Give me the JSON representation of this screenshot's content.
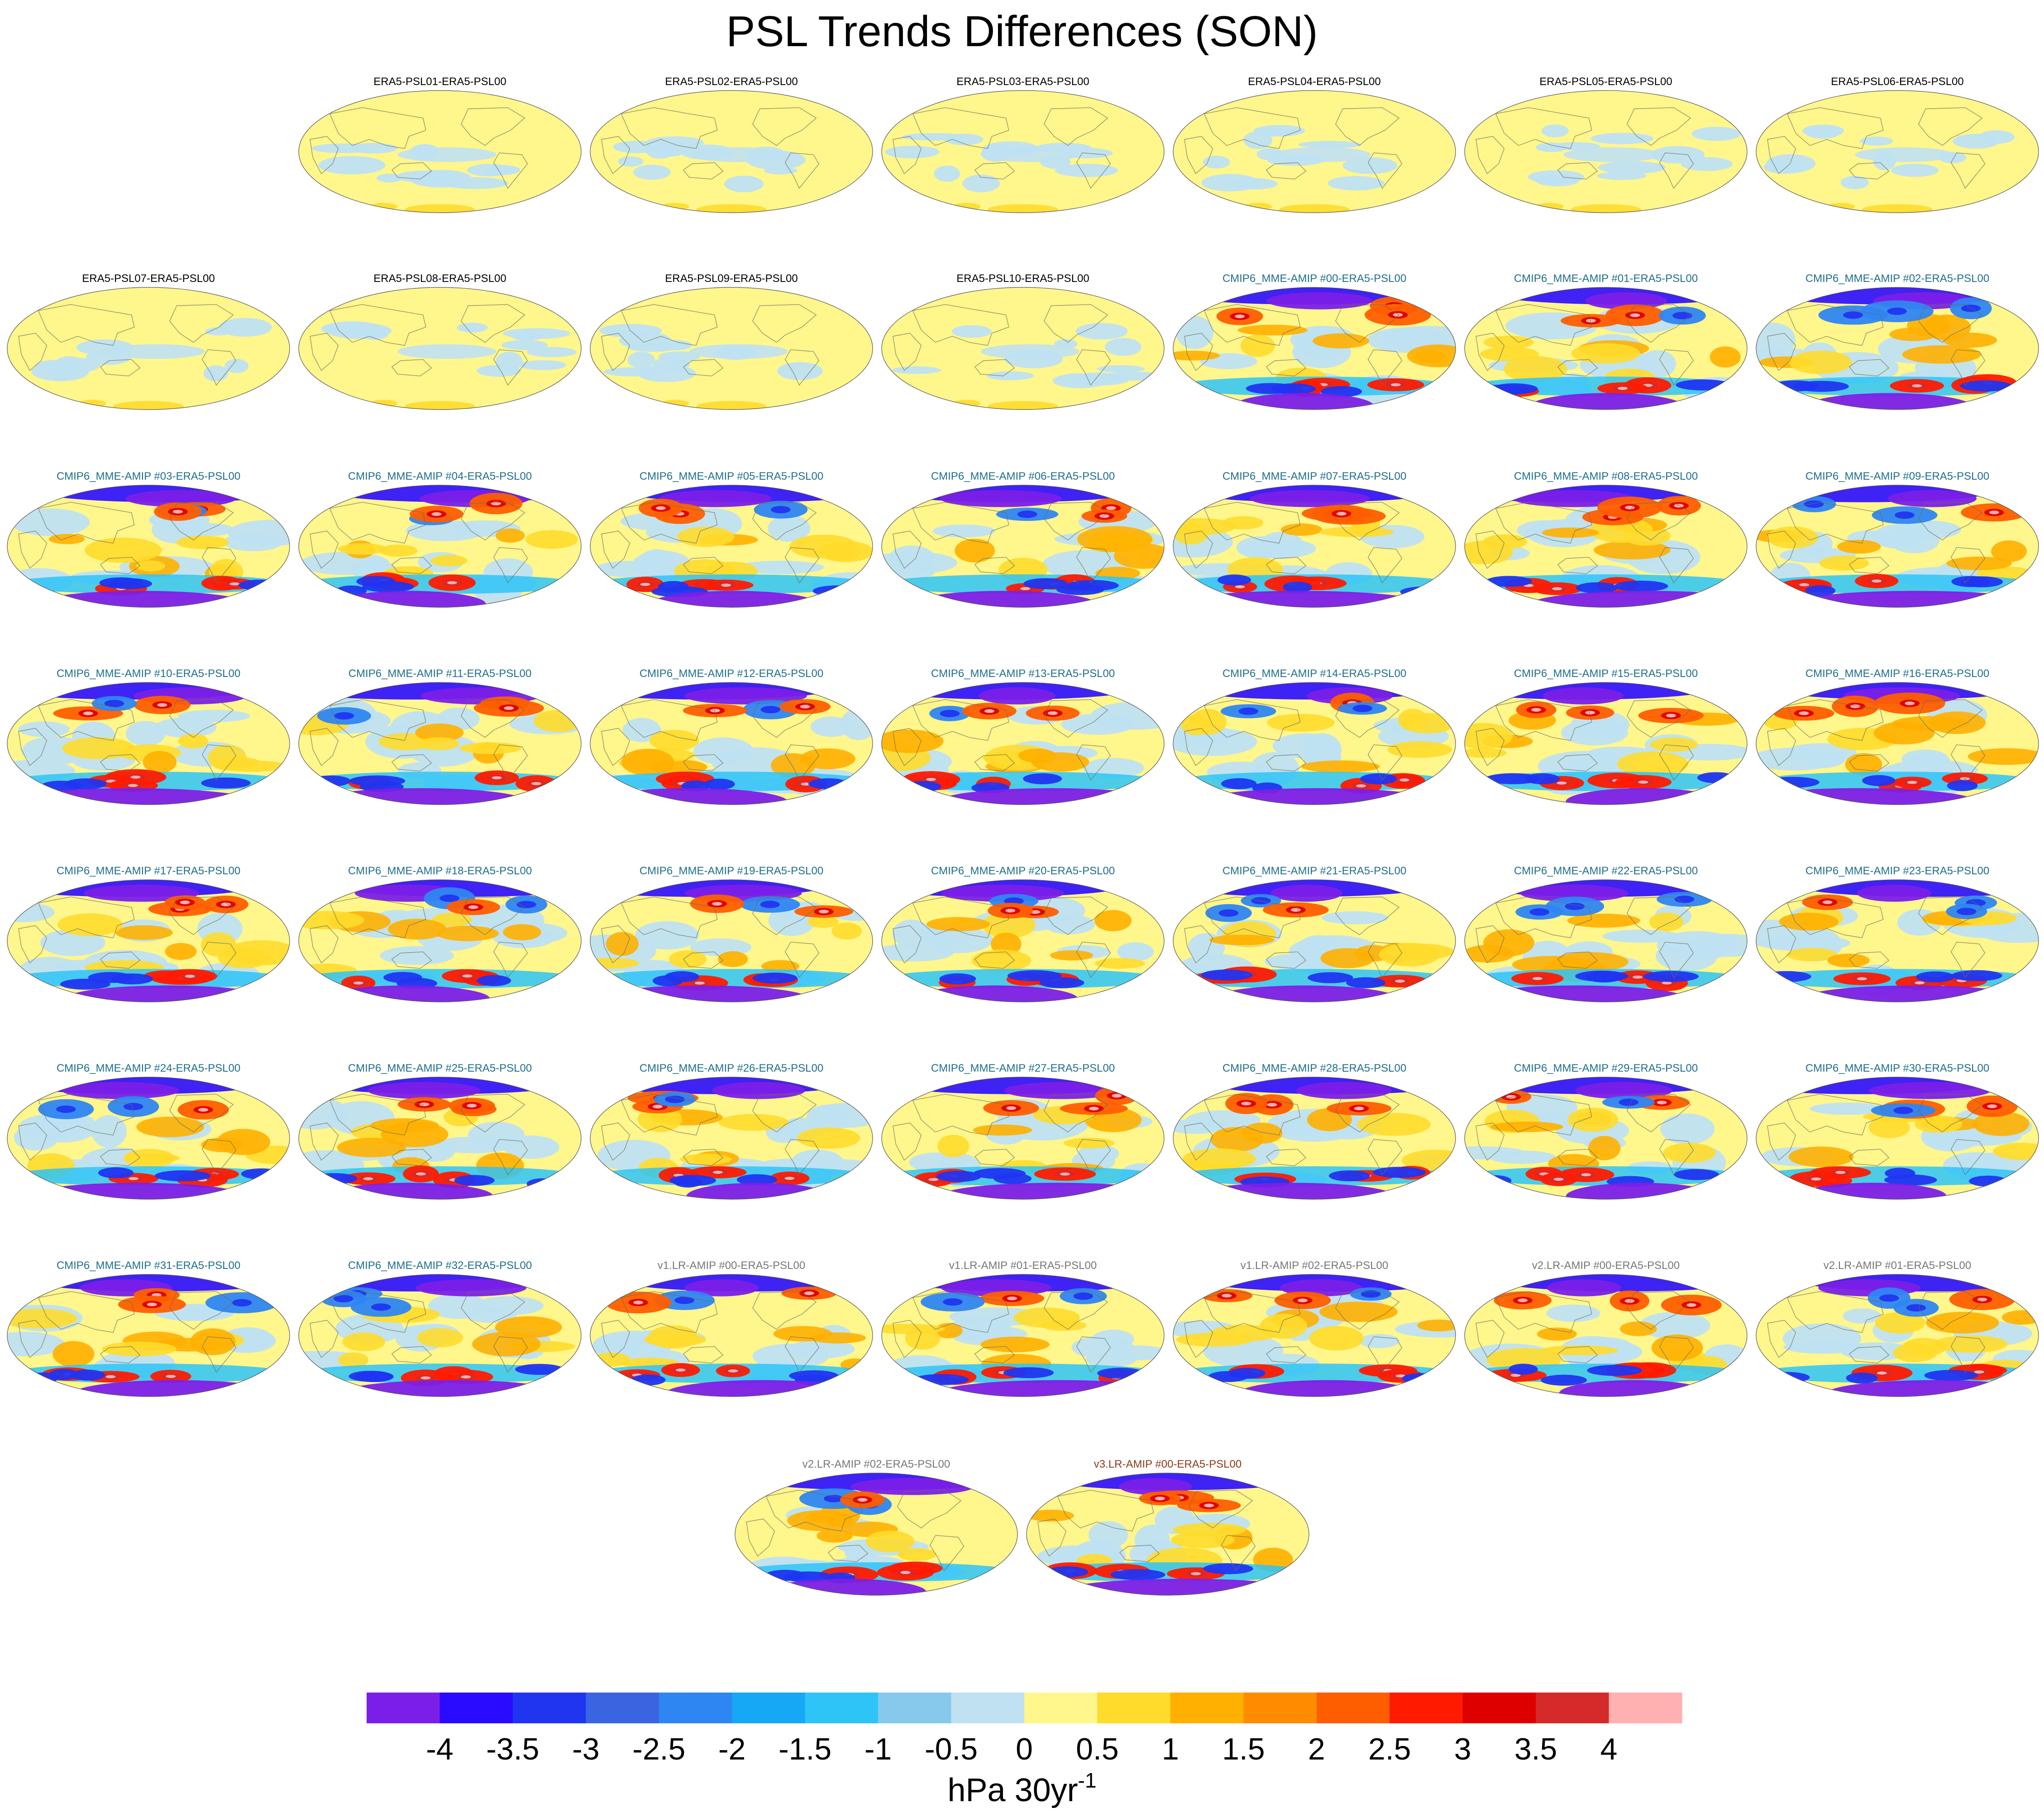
{
  "chart_data": {
    "type": "heatmap",
    "title": "PSL Trends Differences (SON)",
    "projection": "global ellipse (Robinson-like), Pacific-centered",
    "panel_titles": [
      "ERA5-PSL01-ERA5-PSL00",
      "ERA5-PSL02-ERA5-PSL00",
      "ERA5-PSL03-ERA5-PSL00",
      "ERA5-PSL04-ERA5-PSL00",
      "ERA5-PSL05-ERA5-PSL00",
      "ERA5-PSL06-ERA5-PSL00",
      "ERA5-PSL07-ERA5-PSL00",
      "ERA5-PSL08-ERA5-PSL00",
      "ERA5-PSL09-ERA5-PSL00",
      "ERA5-PSL10-ERA5-PSL00",
      "CMIP6_MME-AMIP  #00-ERA5-PSL00",
      "CMIP6_MME-AMIP  #01-ERA5-PSL00",
      "CMIP6_MME-AMIP  #02-ERA5-PSL00",
      "CMIP6_MME-AMIP  #03-ERA5-PSL00",
      "CMIP6_MME-AMIP  #04-ERA5-PSL00",
      "CMIP6_MME-AMIP  #05-ERA5-PSL00",
      "CMIP6_MME-AMIP  #06-ERA5-PSL00",
      "CMIP6_MME-AMIP  #07-ERA5-PSL00",
      "CMIP6_MME-AMIP  #08-ERA5-PSL00",
      "CMIP6_MME-AMIP  #09-ERA5-PSL00",
      "CMIP6_MME-AMIP  #10-ERA5-PSL00",
      "CMIP6_MME-AMIP  #11-ERA5-PSL00",
      "CMIP6_MME-AMIP  #12-ERA5-PSL00",
      "CMIP6_MME-AMIP  #13-ERA5-PSL00",
      "CMIP6_MME-AMIP  #14-ERA5-PSL00",
      "CMIP6_MME-AMIP  #15-ERA5-PSL00",
      "CMIP6_MME-AMIP  #16-ERA5-PSL00",
      "CMIP6_MME-AMIP  #17-ERA5-PSL00",
      "CMIP6_MME-AMIP  #18-ERA5-PSL00",
      "CMIP6_MME-AMIP  #19-ERA5-PSL00",
      "CMIP6_MME-AMIP  #20-ERA5-PSL00",
      "CMIP6_MME-AMIP  #21-ERA5-PSL00",
      "CMIP6_MME-AMIP  #22-ERA5-PSL00",
      "CMIP6_MME-AMIP  #23-ERA5-PSL00",
      "CMIP6_MME-AMIP  #24-ERA5-PSL00",
      "CMIP6_MME-AMIP  #25-ERA5-PSL00",
      "CMIP6_MME-AMIP  #26-ERA5-PSL00",
      "CMIP6_MME-AMIP  #27-ERA5-PSL00",
      "CMIP6_MME-AMIP  #28-ERA5-PSL00",
      "CMIP6_MME-AMIP  #29-ERA5-PSL00",
      "CMIP6_MME-AMIP  #30-ERA5-PSL00",
      "CMIP6_MME-AMIP  #31-ERA5-PSL00",
      "CMIP6_MME-AMIP  #32-ERA5-PSL00",
      "v1.LR-AMIP  #00-ERA5-PSL00",
      "v1.LR-AMIP  #01-ERA5-PSL00",
      "v1.LR-AMIP  #02-ERA5-PSL00",
      "v2.LR-AMIP  #00-ERA5-PSL00",
      "v2.LR-AMIP  #01-ERA5-PSL00",
      "v2.LR-AMIP  #02-ERA5-PSL00",
      "v3.LR-AMIP  #00-ERA5-PSL00"
    ],
    "panel_groups": {
      "ERA5": {
        "count": 10,
        "title_color": "#000000",
        "pattern": "weak"
      },
      "CMIP6_MME-AMIP": {
        "count": 33,
        "title_color": "#1f6e8c",
        "pattern": "strong"
      },
      "v1.LR-AMIP": {
        "count": 3,
        "title_color": "#777777",
        "pattern": "strong"
      },
      "v2.LR-AMIP": {
        "count": 3,
        "title_color": "#777777",
        "pattern": "strong"
      },
      "v3.LR-AMIP": {
        "count": 1,
        "title_color": "#8b3a1a",
        "pattern": "strong"
      }
    },
    "layout_rows": [
      6,
      7,
      7,
      7,
      7,
      7,
      7,
      2
    ],
    "colorbar": {
      "levels": [
        -4,
        -3.5,
        -3,
        -2.5,
        -2,
        -1.5,
        -1,
        -0.5,
        0,
        0.5,
        1,
        1.5,
        2,
        2.5,
        3,
        3.5,
        4
      ],
      "level_labels": [
        "-4",
        "-3.5",
        "-3",
        "-2.5",
        "-2",
        "-1.5",
        "-1",
        "-0.5",
        "0",
        "0.5",
        "1",
        "1.5",
        "2",
        "2.5",
        "3",
        "3.5",
        "4"
      ],
      "colors": [
        "#7b1fe8",
        "#2a0bff",
        "#2035f0",
        "#3a64e0",
        "#2e86f2",
        "#16a8f5",
        "#2ec4f7",
        "#86c9ec",
        "#bfe1f2",
        "#fff68c",
        "#ffdb2b",
        "#ffb000",
        "#ff8c00",
        "#ff5e00",
        "#ff1a00",
        "#de0000",
        "#d42a2a",
        "#ffb0b0"
      ],
      "units_base": "hPa 30yr",
      "units_sup": "-1"
    }
  }
}
